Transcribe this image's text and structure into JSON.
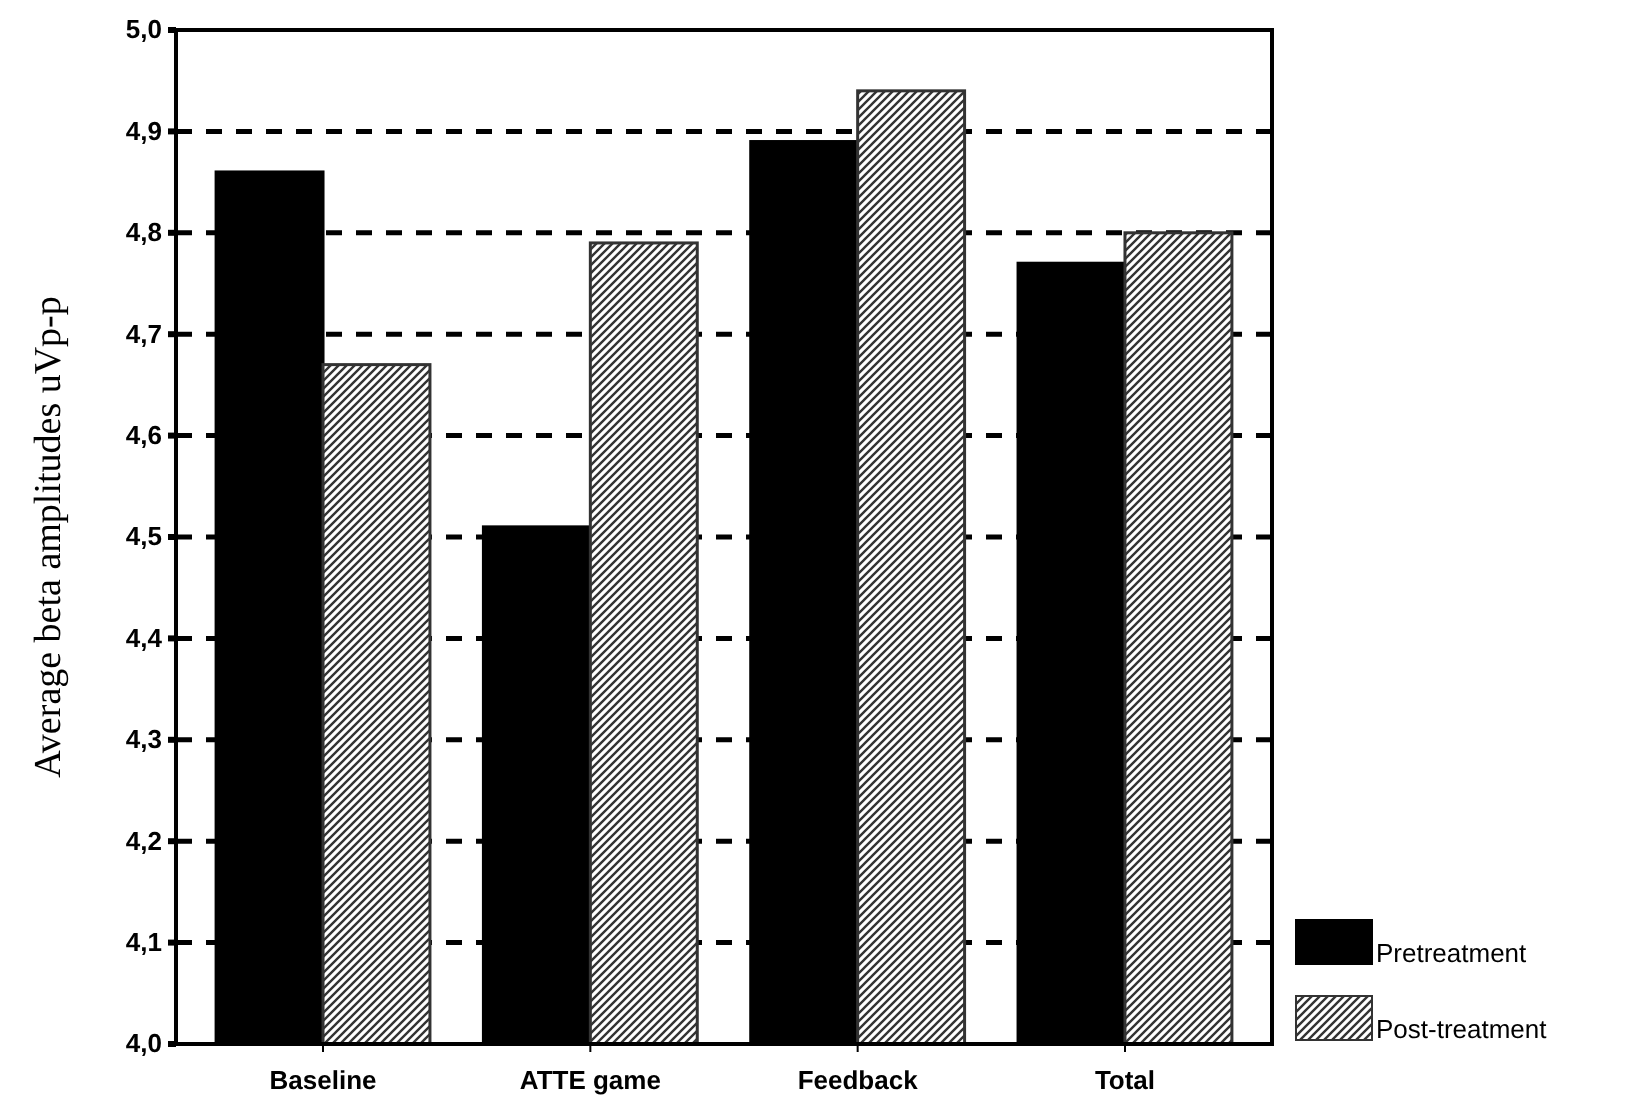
{
  "chart_data": {
    "type": "bar",
    "ylabel": "Average beta amplitudes uVp-p",
    "categories": [
      "Baseline",
      "ATTE game",
      "Feedback",
      "Total"
    ],
    "series": [
      {
        "name": "Pretreatment",
        "color": "#000000",
        "values": [
          4.86,
          4.51,
          4.89,
          4.77
        ]
      },
      {
        "name": "Post-treatment",
        "color": "#333333",
        "values": [
          4.67,
          4.79,
          4.94,
          4.8
        ]
      }
    ],
    "ylim": [
      4.0,
      5.0
    ],
    "yticks": [
      {
        "value": 4.0,
        "label": "4,0"
      },
      {
        "value": 4.1,
        "label": "4,1"
      },
      {
        "value": 4.2,
        "label": "4,2"
      },
      {
        "value": 4.3,
        "label": "4,3"
      },
      {
        "value": 4.4,
        "label": "4,4"
      },
      {
        "value": 4.5,
        "label": "4,5"
      },
      {
        "value": 4.6,
        "label": "4,6"
      },
      {
        "value": 4.7,
        "label": "4,7"
      },
      {
        "value": 4.8,
        "label": "4,8"
      },
      {
        "value": 4.9,
        "label": "4,9"
      },
      {
        "value": 5.0,
        "label": "5,0"
      }
    ],
    "grid": "y",
    "legend": "bottom right"
  }
}
